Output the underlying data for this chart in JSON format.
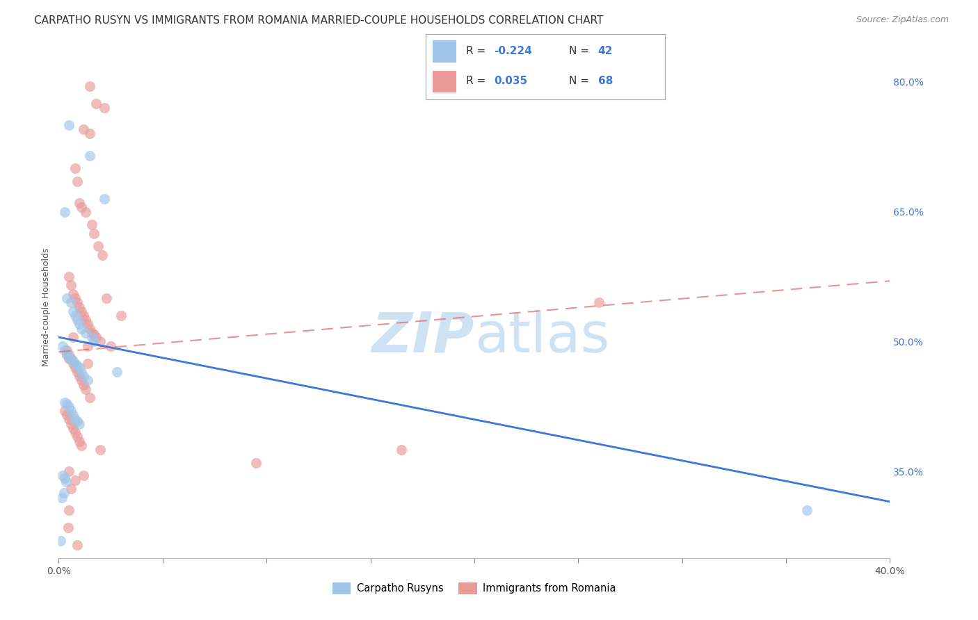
{
  "title": "CARPATHO RUSYN VS IMMIGRANTS FROM ROMANIA MARRIED-COUPLE HOUSEHOLDS CORRELATION CHART",
  "source": "Source: ZipAtlas.com",
  "ylabel": "Married-couple Households",
  "xmin": 0.0,
  "xmax": 40.0,
  "ymin": 25.0,
  "ymax": 83.0,
  "yticks": [
    35.0,
    50.0,
    65.0,
    80.0
  ],
  "xtick_positions": [
    0.0,
    5.0,
    10.0,
    15.0,
    20.0,
    25.0,
    30.0,
    35.0,
    40.0
  ],
  "xtick_labels_show": [
    true,
    false,
    false,
    false,
    false,
    false,
    false,
    false,
    true
  ],
  "blue_color": "#9fc5e8",
  "pink_color": "#ea9999",
  "blue_line_color": "#3c78d8",
  "pink_line_color": "#e06666",
  "blue_label": "Carpatho Rusyns",
  "pink_label": "Immigrants from Romania",
  "blue_R": -0.224,
  "blue_N": 42,
  "pink_R": 0.035,
  "pink_N": 68,
  "blue_line_x0": 0.0,
  "blue_line_y0": 50.5,
  "blue_line_x1": 40.0,
  "blue_line_y1": 31.5,
  "pink_line_x0": 0.0,
  "pink_line_y0": 48.8,
  "pink_line_x1": 40.0,
  "pink_line_y1": 57.0,
  "blue_scatter_x": [
    0.5,
    1.5,
    2.2,
    0.3,
    0.4,
    0.6,
    0.7,
    0.8,
    0.9,
    1.0,
    1.1,
    1.3,
    1.6,
    1.7,
    0.2,
    0.3,
    0.4,
    0.5,
    0.6,
    0.7,
    0.8,
    0.9,
    1.0,
    1.1,
    1.2,
    1.4,
    0.3,
    0.4,
    0.5,
    0.6,
    0.7,
    0.8,
    0.9,
    1.0,
    2.8,
    0.2,
    0.3,
    0.35,
    36.0,
    0.15,
    0.25,
    0.1
  ],
  "blue_scatter_y": [
    75.0,
    71.5,
    66.5,
    65.0,
    55.0,
    54.5,
    53.5,
    53.0,
    52.5,
    52.0,
    51.5,
    51.0,
    50.5,
    50.0,
    49.5,
    49.0,
    48.5,
    48.2,
    48.0,
    47.8,
    47.5,
    47.2,
    47.0,
    46.5,
    46.0,
    45.5,
    43.0,
    42.8,
    42.5,
    42.0,
    41.5,
    41.0,
    40.8,
    40.5,
    46.5,
    34.5,
    34.2,
    33.8,
    30.5,
    32.0,
    32.5,
    27.0
  ],
  "pink_scatter_x": [
    1.5,
    1.8,
    2.2,
    1.2,
    1.5,
    0.8,
    0.9,
    1.0,
    1.1,
    1.3,
    1.6,
    1.7,
    1.9,
    2.1,
    2.3,
    0.5,
    0.6,
    0.7,
    0.8,
    0.9,
    1.0,
    1.1,
    1.2,
    1.3,
    1.4,
    1.5,
    1.6,
    1.7,
    1.8,
    2.0,
    2.5,
    0.4,
    0.5,
    0.6,
    0.7,
    0.8,
    0.9,
    1.0,
    1.1,
    1.2,
    1.3,
    1.5,
    3.0,
    0.3,
    0.4,
    0.5,
    0.6,
    0.7,
    0.8,
    0.9,
    1.0,
    1.1,
    0.5,
    1.2,
    0.8,
    0.6,
    0.7,
    0.4,
    0.5,
    0.9,
    1.4,
    1.4,
    2.0,
    9.5,
    16.5,
    0.5,
    26.0,
    0.45
  ],
  "pink_scatter_y": [
    79.5,
    77.5,
    77.0,
    74.5,
    74.0,
    70.0,
    68.5,
    66.0,
    65.5,
    65.0,
    63.5,
    62.5,
    61.0,
    60.0,
    55.0,
    57.5,
    56.5,
    55.5,
    55.0,
    54.5,
    54.0,
    53.5,
    53.0,
    52.5,
    52.0,
    51.5,
    51.0,
    50.8,
    50.5,
    50.0,
    49.5,
    49.0,
    48.5,
    48.0,
    47.5,
    47.0,
    46.5,
    46.0,
    45.5,
    45.0,
    44.5,
    43.5,
    53.0,
    42.0,
    41.5,
    41.0,
    40.5,
    40.0,
    39.5,
    39.0,
    38.5,
    38.0,
    35.0,
    34.5,
    34.0,
    33.0,
    50.5,
    48.5,
    48.0,
    26.5,
    49.5,
    47.5,
    37.5,
    36.0,
    37.5,
    30.5,
    54.5,
    28.5
  ],
  "background_color": "#ffffff",
  "grid_color": "#cccccc",
  "title_fontsize": 11,
  "axis_label_fontsize": 9,
  "tick_fontsize": 10,
  "watermark_color": "#cfe2f3",
  "scatter_size": 110,
  "scatter_alpha": 0.65
}
